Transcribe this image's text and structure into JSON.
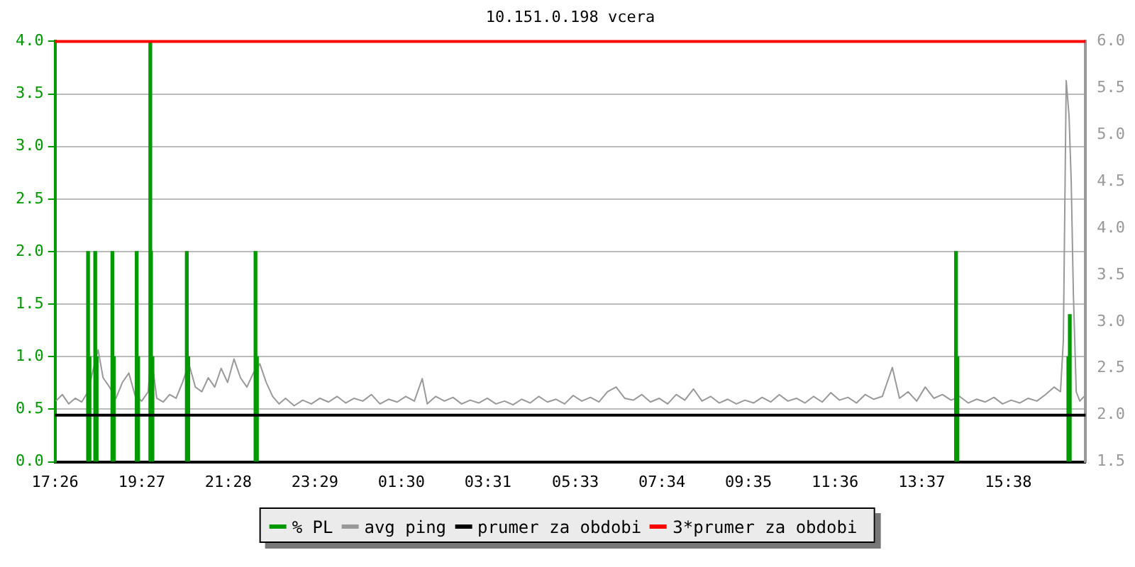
{
  "chart_data": {
    "type": "line",
    "title": "10.151.0.198 vcera",
    "legend": "bottom",
    "grid": "y",
    "marker": "none",
    "line_style": "solid",
    "xlim": [
      "--01-01T17:26",
      "--01-02T17:26"
    ],
    "xticks": [
      {
        "value": "--01-01T17:26",
        "label": "17:26"
      },
      {
        "value": "--01-01T19:27",
        "label": "19:27"
      },
      {
        "value": "--01-01T21:28",
        "label": "21:28"
      },
      {
        "value": "--01-01T23:29",
        "label": "23:29"
      },
      {
        "value": "--01-02T01:30",
        "label": "01:30"
      },
      {
        "value": "--01-02T03:31",
        "label": "03:31"
      },
      {
        "value": "--01-02T05:33",
        "label": "05:33"
      },
      {
        "value": "--01-02T07:34",
        "label": "07:34"
      },
      {
        "value": "--01-02T09:35",
        "label": "09:35"
      },
      {
        "value": "--01-02T11:36",
        "label": "11:36"
      },
      {
        "value": "--01-02T13:37",
        "label": "13:37"
      },
      {
        "value": "--01-02T15:38",
        "label": "15:38"
      }
    ],
    "ylim": [
      0,
      4
    ],
    "yticks": [
      {
        "value": 0,
        "label": "0.0"
      },
      0.5,
      {
        "value": 1,
        "label": "1.0"
      },
      1.5,
      {
        "value": 2,
        "label": "2.0"
      },
      2.5,
      {
        "value": 3,
        "label": "3.0"
      },
      3.5,
      {
        "value": 4,
        "label": "4.0"
      }
    ],
    "y2lim": [
      1.5,
      6
    ],
    "y2ticks": [
      1.5,
      {
        "value": 2,
        "label": "2.0"
      },
      2.5,
      {
        "value": 3,
        "label": "3.0"
      },
      3.5,
      {
        "value": 4,
        "label": "4.0"
      },
      4.5,
      {
        "value": 5,
        "label": "5.0"
      },
      5.5,
      {
        "value": 6,
        "label": "6.0"
      }
    ],
    "series": [
      {
        "name": "% PL",
        "type": "bar",
        "color": "#009900",
        "x": [
          "--01-01T18:12",
          "--01-01T18:14",
          "--01-01T18:22",
          "--01-01T18:24",
          "--01-01T18:46",
          "--01-01T18:48",
          "--01-01T19:20",
          "--01-01T19:22",
          "--01-01T19:39",
          "--01-01T19:40",
          "--01-01T19:42",
          "--01-01T20:30",
          "--01-01T20:32",
          "--01-01T22:06",
          "--01-01T22:08",
          "--01-02T14:25",
          "--01-02T14:27",
          "--01-02T17:02",
          "--01-02T17:04"
        ],
        "values": [
          2,
          1,
          2,
          1,
          2,
          1,
          2,
          1,
          4,
          2,
          1,
          2,
          1,
          2,
          1,
          2,
          1,
          1,
          1.4
        ]
      },
      {
        "name": "avg ping",
        "axis": "y2",
        "color": "#999999",
        "x": [
          "--01-01T17:27",
          "--01-01T17:36",
          "--01-01T17:45",
          "--01-01T17:54",
          "--01-01T18:03",
          "--01-01T18:12",
          "--01-01T18:18",
          "--01-01T18:26",
          "--01-01T18:33",
          "--01-01T18:42",
          "--01-01T18:51",
          "--01-01T19:00",
          "--01-01T19:09",
          "--01-01T19:18",
          "--01-01T19:27",
          "--01-01T19:36",
          "--01-01T19:40",
          "--01-01T19:48",
          "--01-01T19:57",
          "--01-01T20:06",
          "--01-01T20:15",
          "--01-01T20:24",
          "--01-01T20:33",
          "--01-01T20:42",
          "--01-01T20:51",
          "--01-01T21:00",
          "--01-01T21:09",
          "--01-01T21:18",
          "--01-01T21:27",
          "--01-01T21:36",
          "--01-01T21:45",
          "--01-01T21:54",
          "--01-01T22:03",
          "--01-01T22:12",
          "--01-01T22:21",
          "--01-01T22:30",
          "--01-01T22:39",
          "--01-01T22:48",
          "--01-01T23:00",
          "--01-01T23:12",
          "--01-01T23:24",
          "--01-01T23:36",
          "--01-01T23:48",
          "--01-02T00:00",
          "--01-02T00:12",
          "--01-02T00:24",
          "--01-02T00:36",
          "--01-02T00:48",
          "--01-02T01:00",
          "--01-02T01:12",
          "--01-02T01:24",
          "--01-02T01:36",
          "--01-02T01:48",
          "--01-02T01:59",
          "--01-02T02:06",
          "--01-02T02:18",
          "--01-02T02:30",
          "--01-02T02:42",
          "--01-02T02:54",
          "--01-02T03:06",
          "--01-02T03:18",
          "--01-02T03:30",
          "--01-02T03:42",
          "--01-02T03:54",
          "--01-02T04:06",
          "--01-02T04:18",
          "--01-02T04:30",
          "--01-02T04:42",
          "--01-02T04:54",
          "--01-02T05:06",
          "--01-02T05:18",
          "--01-02T05:30",
          "--01-02T05:42",
          "--01-02T05:54",
          "--01-02T06:06",
          "--01-02T06:18",
          "--01-02T06:30",
          "--01-02T06:42",
          "--01-02T06:54",
          "--01-02T07:06",
          "--01-02T07:18",
          "--01-02T07:30",
          "--01-02T07:42",
          "--01-02T07:54",
          "--01-02T08:06",
          "--01-02T08:18",
          "--01-02T08:30",
          "--01-02T08:42",
          "--01-02T08:54",
          "--01-02T09:06",
          "--01-02T09:18",
          "--01-02T09:30",
          "--01-02T09:42",
          "--01-02T09:54",
          "--01-02T10:06",
          "--01-02T10:18",
          "--01-02T10:30",
          "--01-02T10:42",
          "--01-02T10:54",
          "--01-02T11:06",
          "--01-02T11:18",
          "--01-02T11:30",
          "--01-02T11:42",
          "--01-02T11:54",
          "--01-02T12:06",
          "--01-02T12:18",
          "--01-02T12:30",
          "--01-02T12:42",
          "--01-02T12:56",
          "--01-02T13:06",
          "--01-02T13:18",
          "--01-02T13:30",
          "--01-02T13:42",
          "--01-02T13:54",
          "--01-02T14:06",
          "--01-02T14:18",
          "--01-02T14:30",
          "--01-02T14:42",
          "--01-02T14:54",
          "--01-02T15:06",
          "--01-02T15:18",
          "--01-02T15:30",
          "--01-02T15:42",
          "--01-02T15:54",
          "--01-02T16:06",
          "--01-02T16:18",
          "--01-02T16:30",
          "--01-02T16:42",
          "--01-02T16:51",
          "--01-02T16:55",
          "--01-02T16:59",
          "--01-02T17:03",
          "--01-02T17:06",
          "--01-02T17:09",
          "--01-02T17:13",
          "--01-02T17:18",
          "--01-02T17:24"
        ],
        "values": [
          2.15,
          2.22,
          2.12,
          2.18,
          2.14,
          2.25,
          2.45,
          2.7,
          2.4,
          2.3,
          2.18,
          2.35,
          2.45,
          2.2,
          2.15,
          2.25,
          2.66,
          2.18,
          2.14,
          2.22,
          2.18,
          2.35,
          2.55,
          2.3,
          2.25,
          2.4,
          2.3,
          2.5,
          2.35,
          2.6,
          2.4,
          2.3,
          2.45,
          2.55,
          2.35,
          2.2,
          2.12,
          2.18,
          2.1,
          2.16,
          2.12,
          2.18,
          2.14,
          2.2,
          2.13,
          2.18,
          2.15,
          2.22,
          2.12,
          2.17,
          2.14,
          2.2,
          2.15,
          2.39,
          2.12,
          2.2,
          2.15,
          2.19,
          2.12,
          2.16,
          2.13,
          2.18,
          2.12,
          2.15,
          2.11,
          2.17,
          2.13,
          2.2,
          2.14,
          2.17,
          2.12,
          2.21,
          2.15,
          2.19,
          2.14,
          2.25,
          2.3,
          2.18,
          2.16,
          2.22,
          2.14,
          2.18,
          2.12,
          2.22,
          2.16,
          2.28,
          2.15,
          2.2,
          2.13,
          2.17,
          2.12,
          2.16,
          2.13,
          2.19,
          2.14,
          2.22,
          2.15,
          2.18,
          2.13,
          2.2,
          2.14,
          2.24,
          2.16,
          2.19,
          2.13,
          2.22,
          2.17,
          2.2,
          2.51,
          2.18,
          2.25,
          2.15,
          2.3,
          2.18,
          2.22,
          2.16,
          2.2,
          2.13,
          2.17,
          2.14,
          2.19,
          2.12,
          2.16,
          2.13,
          2.18,
          2.15,
          2.22,
          2.3,
          2.25,
          2.8,
          5.58,
          5.2,
          4.5,
          3.3,
          2.25,
          2.15,
          2.2
        ]
      }
    ],
    "ref_lines": [
      {
        "axis": "y2",
        "value": 2.0,
        "label": "prumer za obdobi",
        "color": "#000000"
      },
      {
        "axis": "y2",
        "value": 6.0,
        "label": "3*prumer za obdobi",
        "color": "#ff0000"
      }
    ]
  }
}
